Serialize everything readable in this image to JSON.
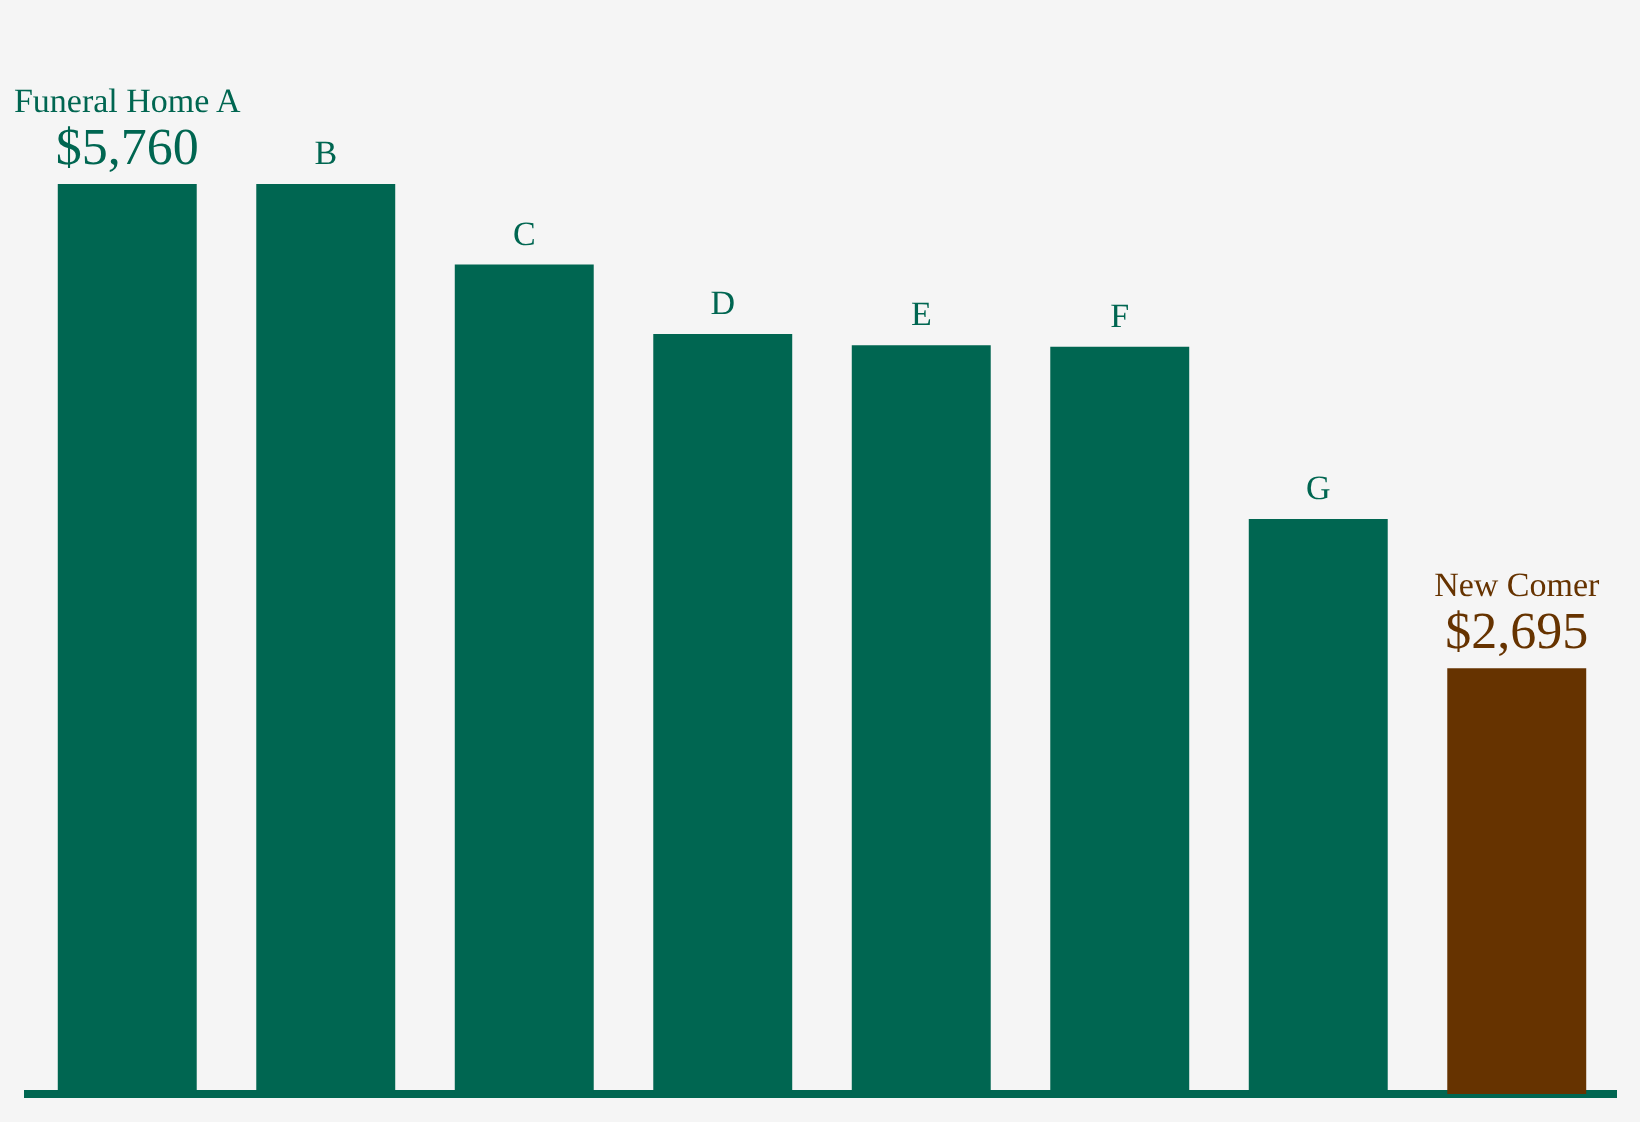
{
  "chart_data": {
    "type": "bar",
    "categories": [
      "Funeral Home A",
      "B",
      "C",
      "D",
      "E",
      "F",
      "G",
      "New Comer"
    ],
    "values": [
      5760,
      5760,
      5250,
      4810,
      4740,
      4730,
      3640,
      2695
    ],
    "value_labels": [
      "$5,760",
      null,
      null,
      null,
      null,
      null,
      null,
      "$2,695"
    ],
    "colors": [
      "#006651",
      "#006651",
      "#006651",
      "#006651",
      "#006651",
      "#006651",
      "#006651",
      "#663300"
    ],
    "grid": false,
    "legend": false
  }
}
